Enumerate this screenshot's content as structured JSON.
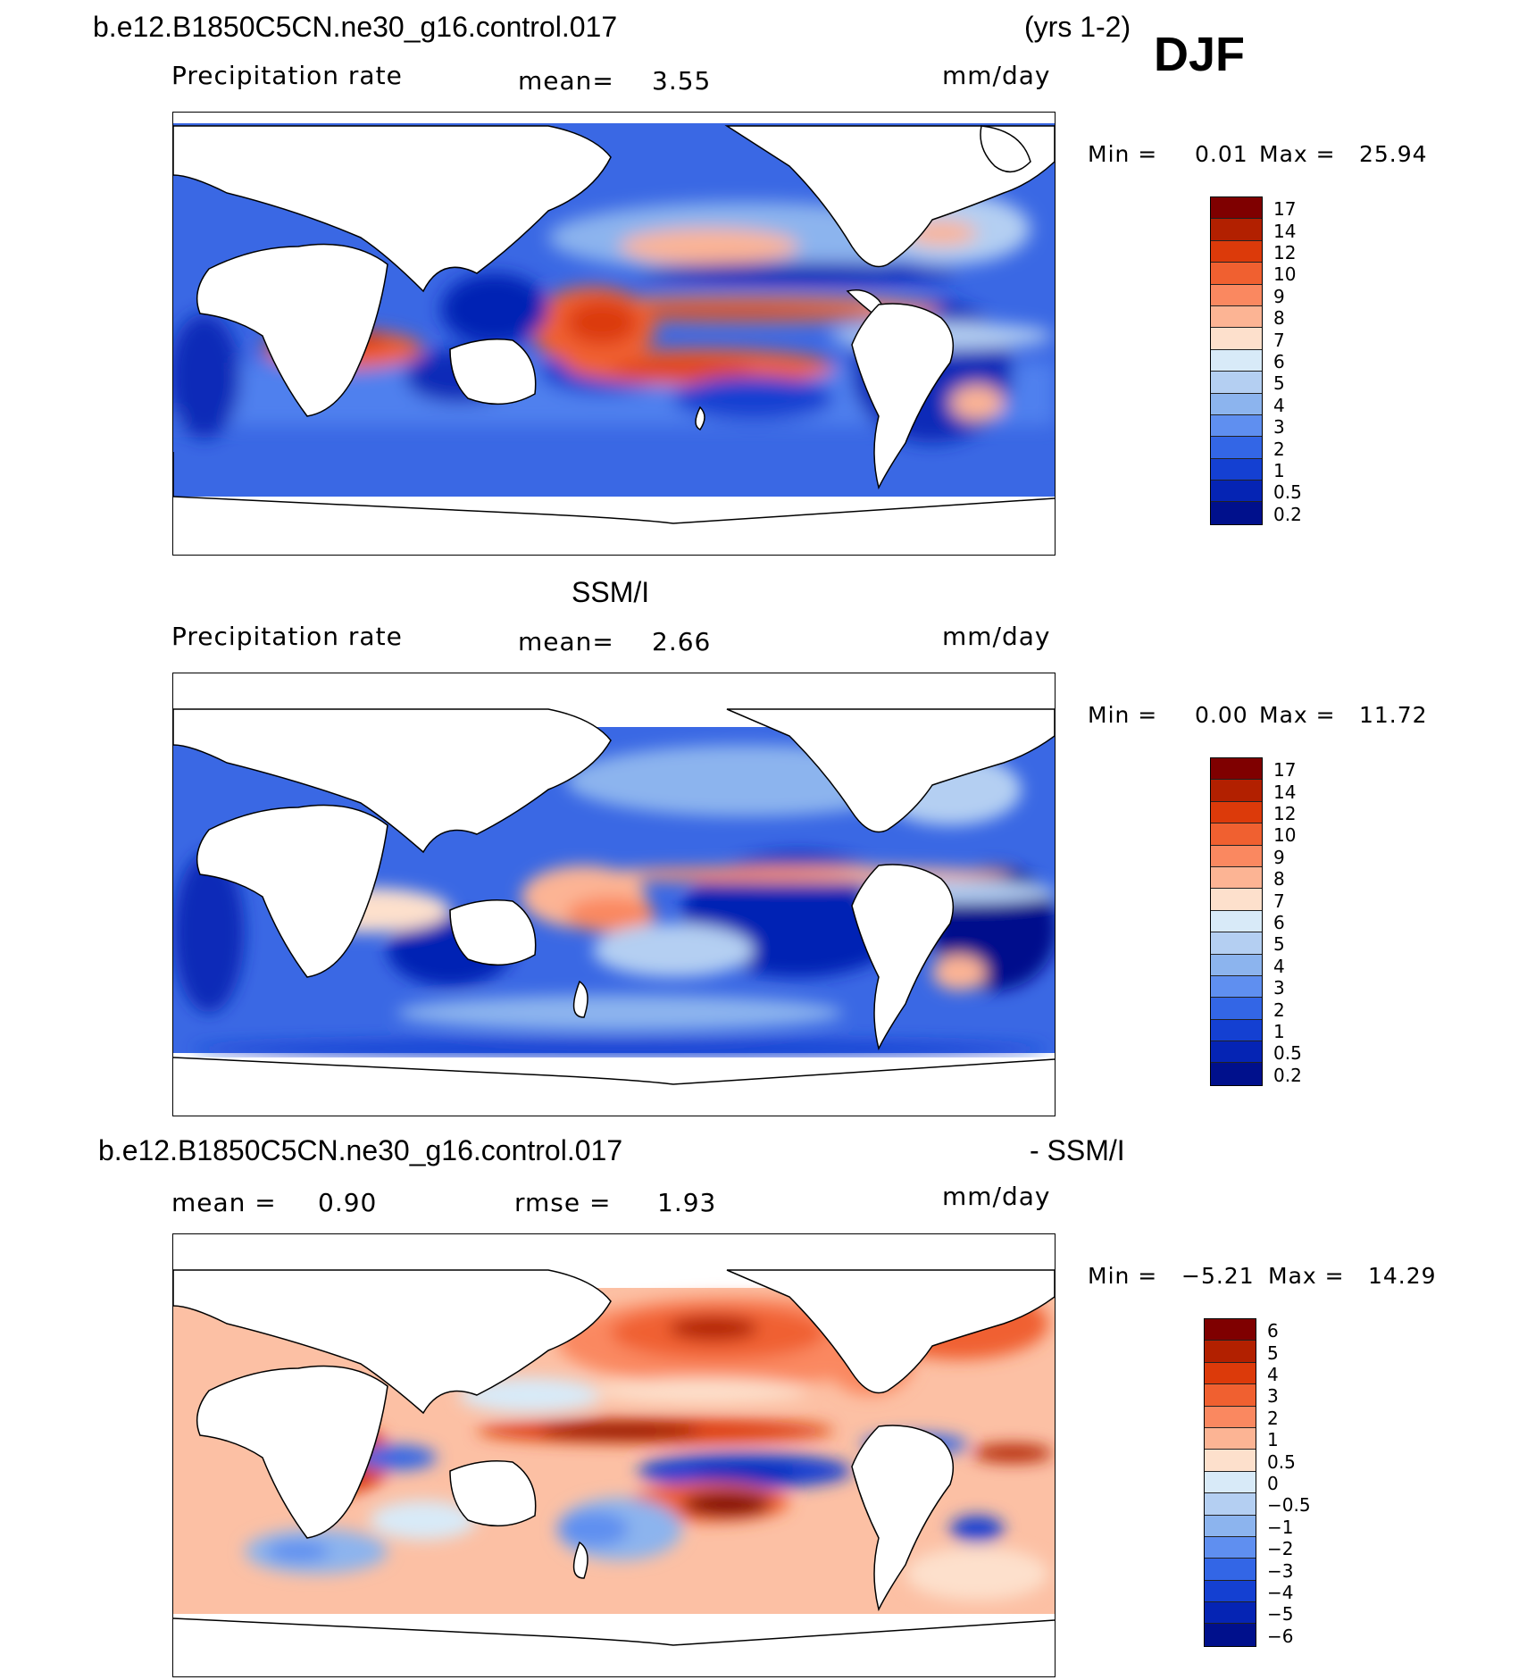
{
  "header": {
    "case_name": "b.e12.B1850C5CN.ne30_g16.control.017",
    "years": "(yrs 1-2)",
    "season": "DJF"
  },
  "panels": [
    {
      "id": "model",
      "field": "Precipitation rate",
      "mean_label": "mean=",
      "mean_value": "3.55",
      "units": "mm/day",
      "min_label": "Min =",
      "min_value": "0.01",
      "max_label": "Max =",
      "max_value": "25.94",
      "levels": [
        "17",
        "14",
        "12",
        "10",
        "9",
        "8",
        "7",
        "6",
        "5",
        "4",
        "3",
        "2",
        "1",
        "0.5",
        "0.2"
      ]
    },
    {
      "id": "obs",
      "title": "SSM/I",
      "field": "Precipitation rate",
      "mean_label": "mean=",
      "mean_value": "2.66",
      "units": "mm/day",
      "min_label": "Min =",
      "min_value": "0.00",
      "max_label": "Max =",
      "max_value": "11.72",
      "levels": [
        "17",
        "14",
        "12",
        "10",
        "9",
        "8",
        "7",
        "6",
        "5",
        "4",
        "3",
        "2",
        "1",
        "0.5",
        "0.2"
      ]
    },
    {
      "id": "diff",
      "title_left": "b.e12.B1850C5CN.ne30_g16.control.017",
      "title_right": "- SSM/I",
      "mean_label": "mean =",
      "mean_value": "0.90",
      "rmse_label": "rmse =",
      "rmse_value": "1.93",
      "units": "mm/day",
      "min_label": "Min =",
      "min_value": "−5.21",
      "max_label": "Max =",
      "max_value": "14.29",
      "levels": [
        "6",
        "5",
        "4",
        "3",
        "2",
        "1",
        "0.5",
        "0",
        "−0.5",
        "−1",
        "−2",
        "−3",
        "−4",
        "−5",
        "−6"
      ]
    }
  ],
  "colors": {
    "precip_scale": [
      "#7f0000",
      "#b22000",
      "#dc3a0a",
      "#f06030",
      "#fa8860",
      "#fcb494",
      "#fde0cc",
      "#d8eaf8",
      "#b4cff2",
      "#8cb4ee",
      "#5f8ff0",
      "#3366e6",
      "#1440d2",
      "#0524b4",
      "#00108c"
    ],
    "diff_scale": [
      "#7f0000",
      "#b22000",
      "#dc3a0a",
      "#f06030",
      "#fa8860",
      "#fcb494",
      "#fde0cc",
      "#d8eaf8",
      "#b4cff2",
      "#8cb4ee",
      "#5f8ff0",
      "#3366e6",
      "#1440d2",
      "#0524b4",
      "#00108c"
    ]
  }
}
